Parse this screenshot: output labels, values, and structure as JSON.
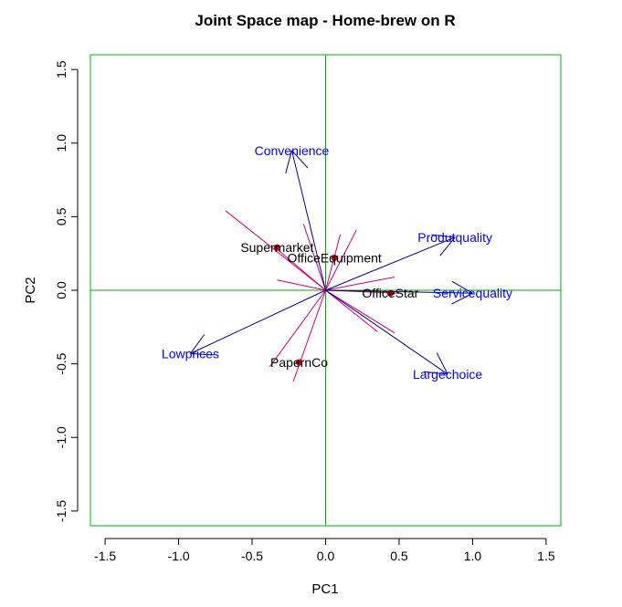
{
  "chart_data": {
    "type": "scatter",
    "title": "Joint Space map - Home-brew on R",
    "xlabel": "PC1",
    "ylabel": "PC2",
    "xlim": [
      -1.6,
      1.6
    ],
    "ylim": [
      -1.6,
      1.6
    ],
    "xticks": [
      -1.5,
      -1.0,
      -0.5,
      0.0,
      0.5,
      1.0,
      1.5
    ],
    "xtick_labels": [
      "-1.5",
      "-1.0",
      "-0.5",
      "0.0",
      "0.5",
      "1.0",
      "1.5"
    ],
    "yticks": [
      -1.5,
      -1.0,
      -0.5,
      0.0,
      0.5,
      1.0,
      1.5
    ],
    "ytick_labels": [
      "-1.5",
      "-1.0",
      "-0.5",
      "0.0",
      "0.5",
      "1.0",
      "1.5"
    ],
    "frame_color": "#00b000",
    "axis_line_color": "#00b000",
    "attribute_arrow_color": "#00008b",
    "attribute_label_color": "#0000ff",
    "brand_color": "#cc0000",
    "magenta_color": "#cc0077",
    "attributes": [
      {
        "name": "Convenience",
        "x": -0.23,
        "y": 0.95
      },
      {
        "name": "Produtquality",
        "x": 0.88,
        "y": 0.36
      },
      {
        "name": "Servicequality",
        "x": 1.0,
        "y": -0.02
      },
      {
        "name": "Largechoice",
        "x": 0.83,
        "y": -0.57
      },
      {
        "name": "Lowprices",
        "x": -0.92,
        "y": -0.43
      }
    ],
    "brands": [
      {
        "name": "Supermarket",
        "x": -0.33,
        "y": 0.29
      },
      {
        "name": "OfficeEquipment",
        "x": 0.06,
        "y": 0.22
      },
      {
        "name": "OfficeStar",
        "x": 0.44,
        "y": -0.02
      },
      {
        "name": "PapernCo",
        "x": -0.18,
        "y": -0.49
      }
    ],
    "magenta_lines": [
      {
        "x": -0.68,
        "y": 0.54
      },
      {
        "x": 0.47,
        "y": -0.29
      },
      {
        "x": -0.38,
        "y": -0.52
      },
      {
        "x": 0.35,
        "y": -0.28
      },
      {
        "x": -0.22,
        "y": -0.62
      },
      {
        "x": 0.21,
        "y": 0.41
      },
      {
        "x": 0.47,
        "y": 0.09
      },
      {
        "x": -0.33,
        "y": 0.28
      },
      {
        "x": -0.15,
        "y": 0.45
      },
      {
        "x": 0.5,
        "y": -0.02
      },
      {
        "x": -0.33,
        "y": 0.07
      },
      {
        "x": 0.1,
        "y": 0.38
      }
    ]
  }
}
